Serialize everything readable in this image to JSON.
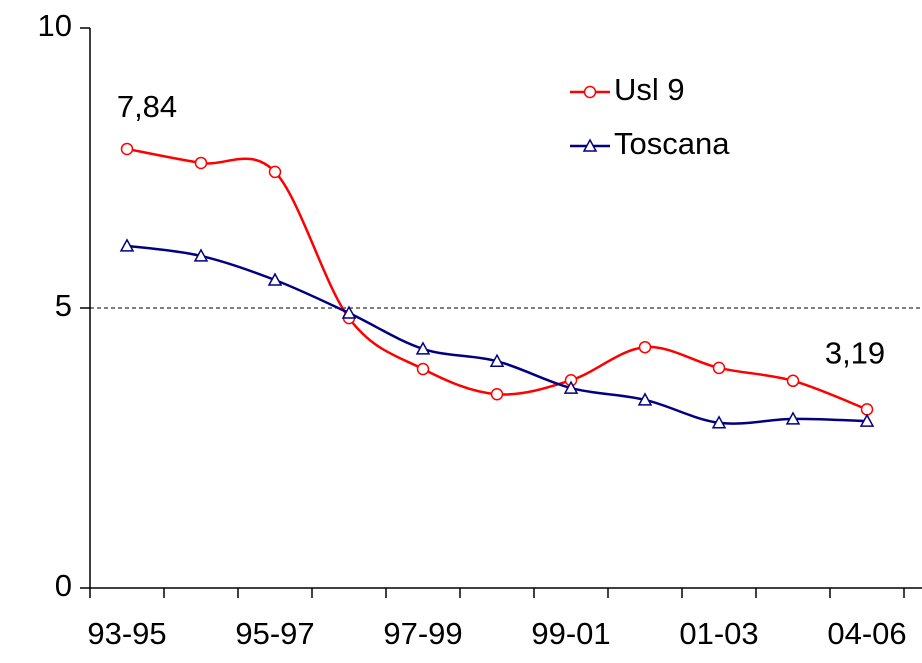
{
  "chart_data": {
    "type": "line",
    "categories": [
      "93-95",
      null,
      "95-97",
      null,
      "97-99",
      null,
      "99-01",
      null,
      "01-03",
      null,
      "04-06"
    ],
    "series": [
      {
        "name": "Usl 9",
        "color": "#ff0000",
        "marker": "circle",
        "values": [
          7.84,
          7.59,
          7.43,
          4.82,
          3.91,
          3.46,
          3.71,
          4.3,
          3.93,
          3.7,
          3.19
        ],
        "value_labels": [
          "7,84",
          null,
          null,
          null,
          null,
          null,
          null,
          null,
          null,
          null,
          "3,19"
        ]
      },
      {
        "name": "Toscana",
        "color": "#000080",
        "marker": "triangle",
        "values": [
          6.11,
          5.93,
          5.5,
          4.91,
          4.27,
          4.05,
          3.57,
          3.36,
          2.95,
          3.02,
          2.98
        ]
      }
    ],
    "ylim": [
      0,
      10
    ],
    "yticks": [
      0,
      5,
      10
    ],
    "grid": true,
    "legend": "top-right"
  }
}
